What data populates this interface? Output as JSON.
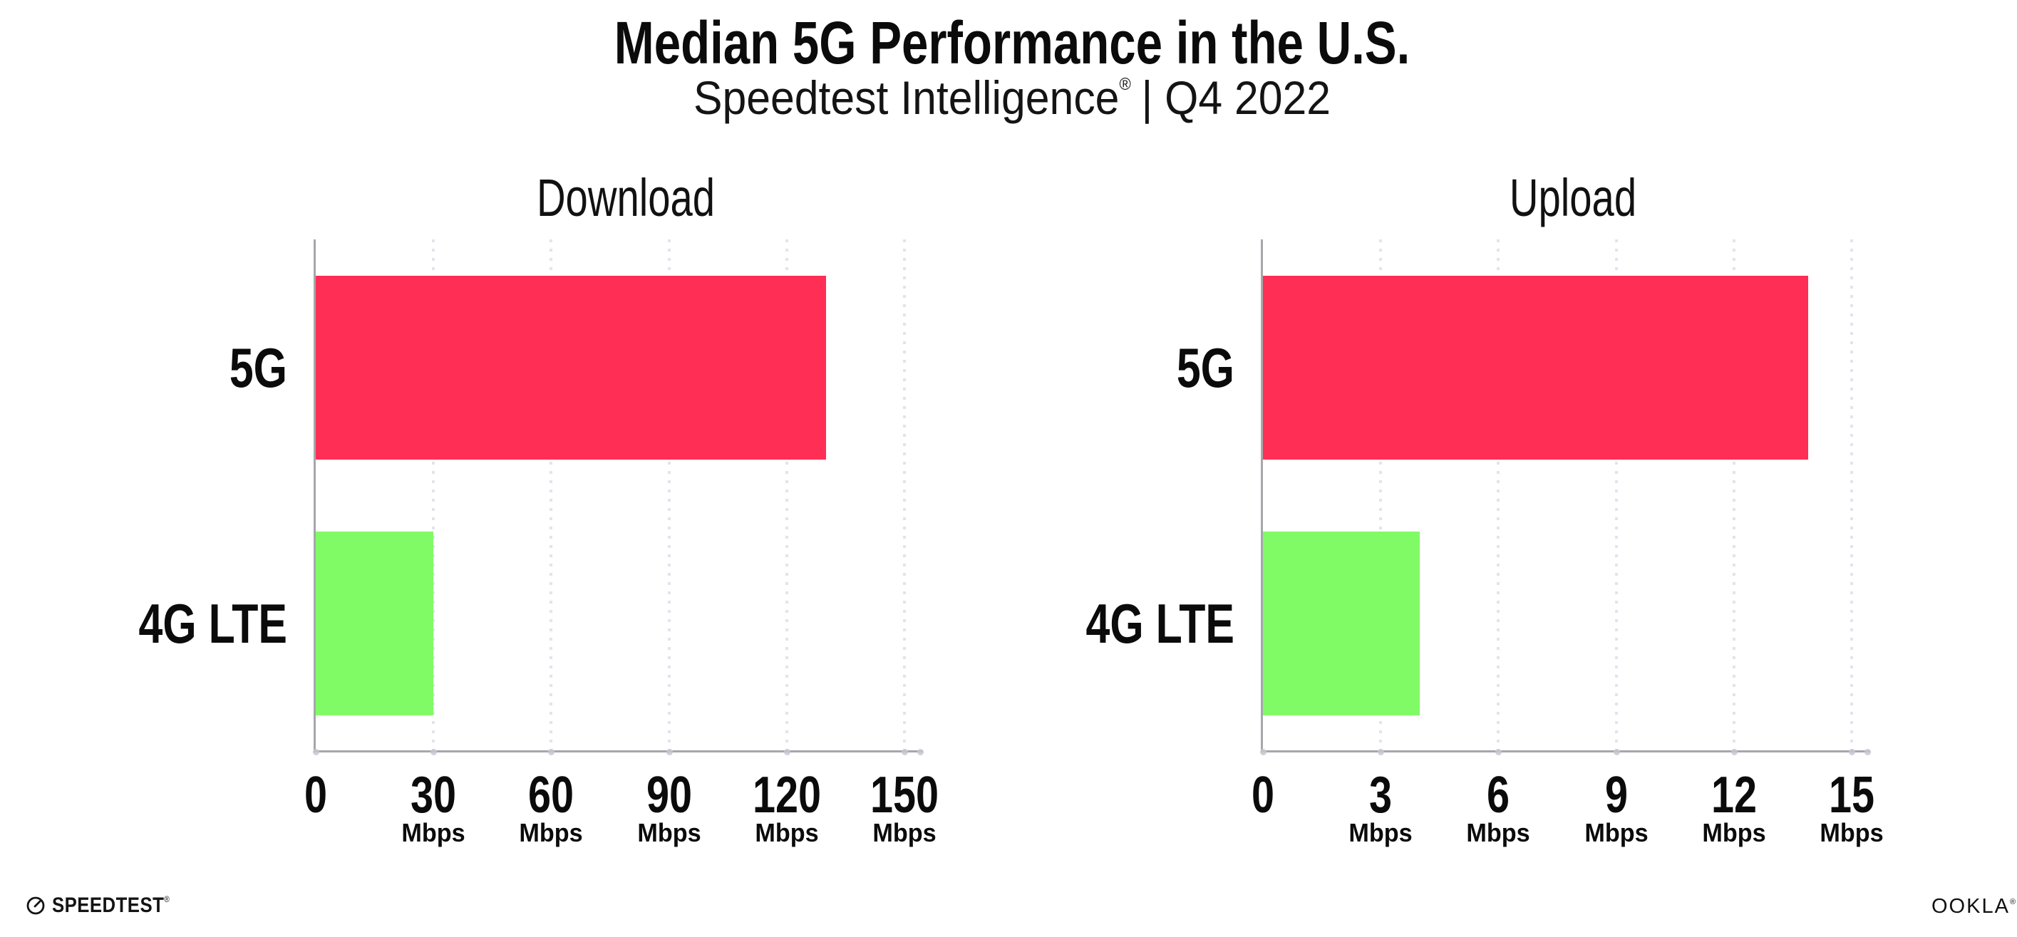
{
  "header": {
    "title": "Median 5G Performance in the U.S.",
    "subtitle_brand": "Speedtest Intelligence",
    "subtitle_reg": "®",
    "subtitle_rest": "| Q4 2022"
  },
  "chart_data": [
    {
      "type": "bar",
      "orientation": "horizontal",
      "title": "Download",
      "categories": [
        "5G",
        "4G LTE"
      ],
      "values": [
        130,
        30
      ],
      "unit": "Mbps",
      "xlim": [
        0,
        150
      ],
      "ticks": [
        0,
        30,
        60,
        90,
        120,
        150
      ],
      "tick_unit": "Mbps",
      "grid": "vertical-dotted",
      "legend": "none",
      "bar_colors": [
        "#FF2E55",
        "#80FB66"
      ]
    },
    {
      "type": "bar",
      "orientation": "horizontal",
      "title": "Upload",
      "categories": [
        "5G",
        "4G LTE"
      ],
      "values": [
        13.9,
        4
      ],
      "unit": "Mbps",
      "xlim": [
        0,
        15
      ],
      "ticks": [
        0,
        3,
        6,
        9,
        12,
        15
      ],
      "tick_unit": "Mbps",
      "grid": "vertical-dotted",
      "legend": "none",
      "bar_colors": [
        "#FF2E55",
        "#80FB66"
      ]
    }
  ],
  "footer": {
    "speedtest_label": "SPEEDTEST",
    "speedtest_reg": "®",
    "ookla_label": "OOKLA",
    "ookla_reg": "®"
  },
  "colors": {
    "bar_5g": "#FF2E55",
    "bar_4g_lte": "#80FB66",
    "gridline": "#E3E3ED",
    "axis": "#A6A6AC",
    "text": "#0D0D0D"
  }
}
